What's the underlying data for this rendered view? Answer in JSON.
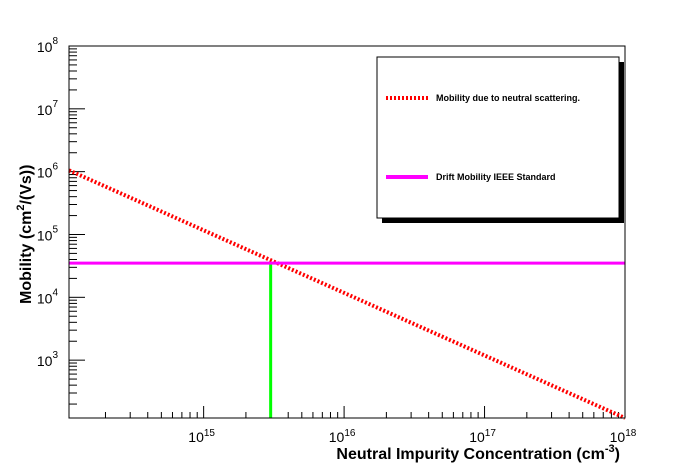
{
  "chart_data": {
    "type": "line",
    "x_scale": "log",
    "y_scale": "log",
    "xlim": [
      110000000000000.0,
      1e+18
    ],
    "ylim": [
      120,
      100000000.0
    ],
    "x_major_ticks": [
      {
        "base": "10",
        "exp": "15",
        "value": 1000000000000000.0
      },
      {
        "base": "10",
        "exp": "16",
        "value": 1e+16
      },
      {
        "base": "10",
        "exp": "17",
        "value": 1e+17
      },
      {
        "base": "10",
        "exp": "18",
        "value": 1e+18
      }
    ],
    "y_major_ticks": [
      {
        "base": "10",
        "exp": "3",
        "value": 1000.0
      },
      {
        "base": "10",
        "exp": "4",
        "value": 10000.0
      },
      {
        "base": "10",
        "exp": "5",
        "value": 100000.0
      },
      {
        "base": "10",
        "exp": "6",
        "value": 1000000.0
      },
      {
        "base": "10",
        "exp": "7",
        "value": 10000000.0
      },
      {
        "base": "10",
        "exp": "8",
        "value": 100000000.0
      }
    ],
    "xlabel": {
      "text": "Neutral Impurity Concentration (cm",
      "sup": "-3",
      "end": ")"
    },
    "ylabel": {
      "text": "Mobility (cm",
      "sup": "2",
      "end": "/(Vs))"
    },
    "legend_position": "top-right",
    "series": [
      {
        "name": "Mobility due to neutral scattering.",
        "style": "dotted",
        "color": "#ff0000",
        "x": [
          110000000000000.0,
          1e+18
        ],
        "y": [
          1050000.0,
          120
        ]
      },
      {
        "name": "Drift Mobility IEEE Standard",
        "style": "solid",
        "color": "#ff00ff",
        "x": [
          110000000000000.0,
          1e+18
        ],
        "y": [
          35000,
          35000
        ]
      }
    ],
    "annotations": [
      {
        "type": "vertical-line",
        "color": "#00ff00",
        "x": 3000000000000000.0,
        "y": [
          120,
          35000
        ]
      }
    ]
  }
}
